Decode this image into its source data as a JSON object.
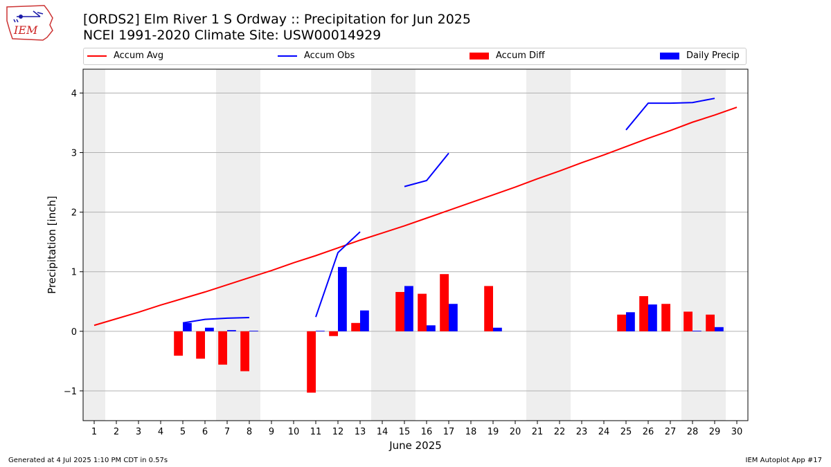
{
  "header": {
    "title_line1": "[ORDS2] Elm River 1 S Ordway :: Precipitation for Jun 2025",
    "title_line2": "NCEI 1991-2020 Climate Site: USW00014929",
    "logo_text": "IEM"
  },
  "legend": {
    "accum_avg": "Accum Avg",
    "accum_obs": "Accum Obs",
    "accum_diff": "Accum Diff",
    "daily_precip": "Daily Precip"
  },
  "footer": {
    "left": "Generated at 4 Jul 2025 1:10 PM CDT in 0.57s",
    "right": "IEM Autoplot App #17"
  },
  "colors": {
    "avg": "#ff0000",
    "obs": "#0000ff",
    "diff": "#ff0000",
    "daily": "#0000ff",
    "weekend_shade": "#eeeeee",
    "grid": "#b0b0b0"
  },
  "chart_data": {
    "type": "bar",
    "xlabel": "June 2025",
    "ylabel": "Precipitation [inch]",
    "xlim": [
      0.5,
      30.5
    ],
    "ylim": [
      -1.5,
      4.4
    ],
    "yticks": [
      -1,
      0,
      1,
      2,
      3,
      4
    ],
    "grid": "horizontal",
    "legend_position": "top",
    "days": [
      1,
      2,
      3,
      4,
      5,
      6,
      7,
      8,
      9,
      10,
      11,
      12,
      13,
      14,
      15,
      16,
      17,
      18,
      19,
      20,
      21,
      22,
      23,
      24,
      25,
      26,
      27,
      28,
      29,
      30
    ],
    "shaded_days": [
      1,
      7,
      8,
      14,
      15,
      21,
      22,
      28,
      29
    ],
    "series": [
      {
        "name": "Accum Avg",
        "kind": "line",
        "values": [
          0.1,
          0.21,
          0.32,
          0.44,
          0.55,
          0.66,
          0.78,
          0.9,
          1.02,
          1.15,
          1.27,
          1.4,
          1.53,
          1.65,
          1.77,
          1.9,
          2.03,
          2.16,
          2.29,
          2.42,
          2.56,
          2.69,
          2.83,
          2.96,
          3.1,
          3.24,
          3.37,
          3.51,
          3.63,
          3.76
        ]
      },
      {
        "name": "Accum Obs",
        "kind": "line",
        "values": [
          null,
          null,
          null,
          null,
          0.14,
          0.2,
          0.22,
          0.23,
          null,
          null,
          0.24,
          1.32,
          1.67,
          null,
          2.43,
          2.53,
          2.99,
          null,
          null,
          null,
          null,
          null,
          null,
          null,
          3.38,
          3.83,
          3.83,
          3.84,
          3.91,
          null
        ]
      },
      {
        "name": "Accum Diff",
        "kind": "bar",
        "values": [
          null,
          null,
          null,
          null,
          -0.41,
          -0.46,
          -0.56,
          -0.67,
          null,
          null,
          -1.03,
          -0.08,
          0.14,
          null,
          0.66,
          0.63,
          0.96,
          null,
          0.76,
          null,
          null,
          null,
          null,
          null,
          0.28,
          0.59,
          0.46,
          0.33,
          0.28,
          null
        ]
      },
      {
        "name": "Daily Precip",
        "kind": "bar",
        "values": [
          null,
          null,
          null,
          null,
          0.14,
          0.06,
          0.02,
          0.01,
          null,
          null,
          0.01,
          1.08,
          0.35,
          null,
          0.76,
          0.1,
          0.46,
          null,
          0.06,
          null,
          null,
          null,
          null,
          null,
          0.32,
          0.45,
          null,
          0.01,
          0.07,
          null
        ]
      }
    ]
  }
}
